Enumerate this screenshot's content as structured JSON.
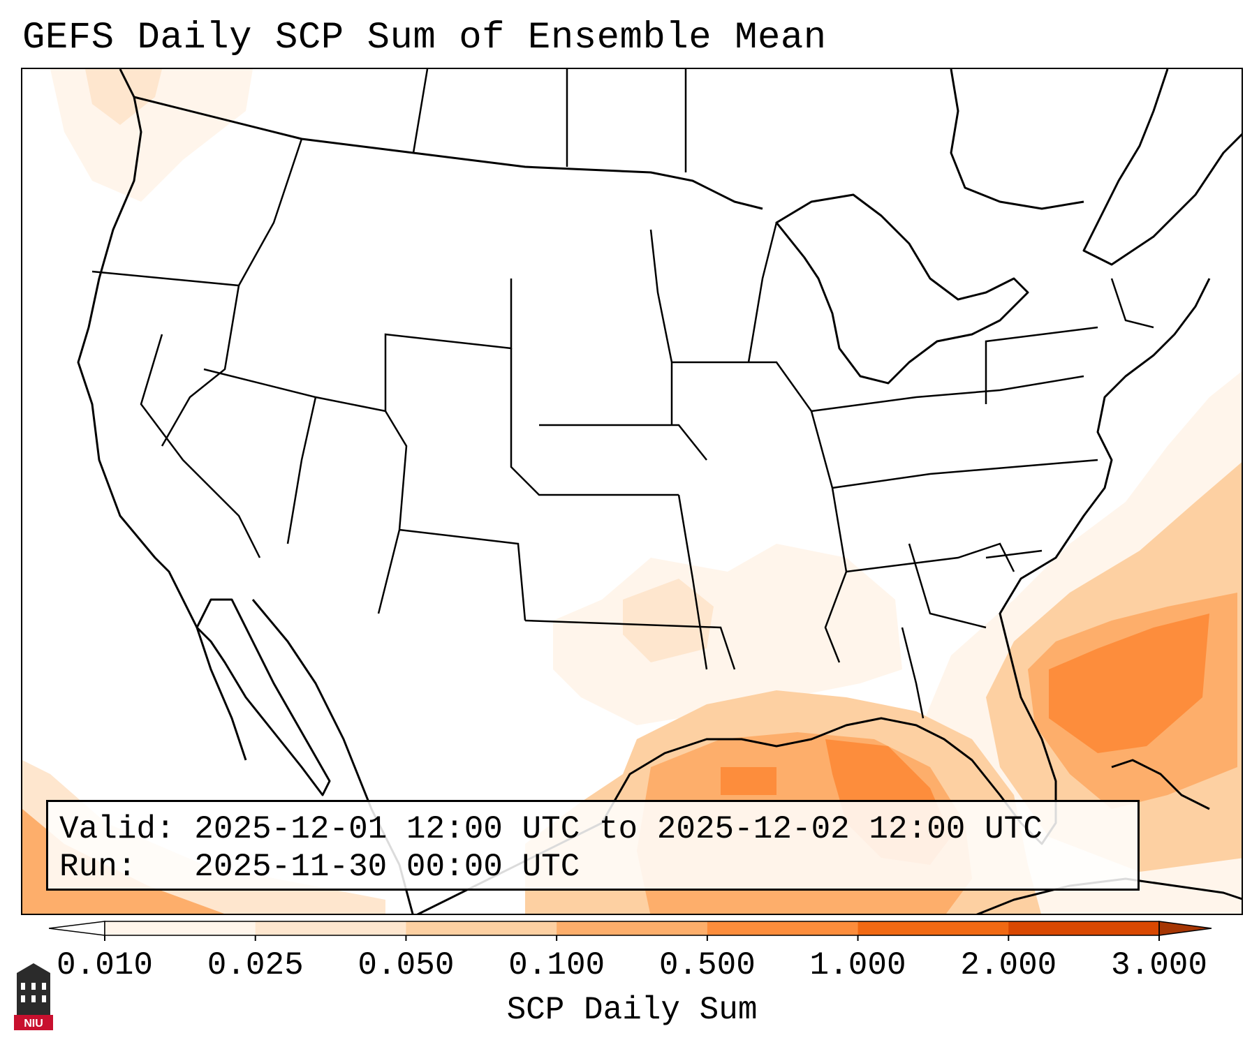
{
  "title": "GEFS Daily SCP Sum of Ensemble Mean",
  "info": {
    "valid_line": "Valid: 2025-12-01 12:00 UTC to 2025-12-02 12:00 UTC",
    "run_line": "Run:   2025-11-30 00:00 UTC"
  },
  "colorbar": {
    "label": "SCP Daily Sum",
    "ticks": [
      "0.010",
      "0.025",
      "0.050",
      "0.100",
      "0.500",
      "1.000",
      "2.000",
      "3.000"
    ],
    "colors": [
      "#fff5eb",
      "#fee6ce",
      "#fdd0a2",
      "#fdae6b",
      "#fd8d3c",
      "#f16913",
      "#d94801",
      "#a63603"
    ],
    "under_color": "#ffffff",
    "over_color": "#a63603",
    "extend": "both"
  },
  "map": {
    "region": "Contiguous United States",
    "highest_values_region": "Gulf of Mexico and western Atlantic off the Southeast coast"
  },
  "logo": {
    "text": "NIU",
    "icon": "university-building-icon"
  }
}
